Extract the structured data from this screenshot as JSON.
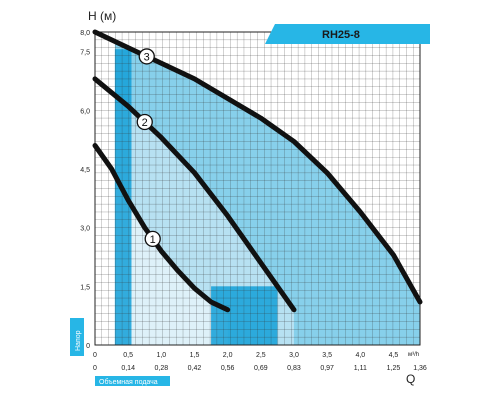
{
  "chart_data": {
    "type": "line",
    "model_label": "RH25-8",
    "ylabel": "H (м)",
    "ylabel_side": "Напор",
    "xlabel": "Q",
    "xunit": "м³/h",
    "xlabel_secondary": "Объемная подача",
    "ylim": [
      0,
      8.0
    ],
    "xlim": [
      0,
      4.9
    ],
    "y_ticks": [
      "0",
      "1,5",
      "3,0",
      "4,5",
      "6,0",
      "7,5",
      "8,0"
    ],
    "x_ticks": [
      "0",
      "0,5",
      "1,0",
      "1,5",
      "2,0",
      "2,5",
      "3,0",
      "3,5",
      "4,0",
      "4,5"
    ],
    "x_ticks_secondary": [
      "0",
      "0,14",
      "0,28",
      "0,42",
      "0,56",
      "0,69",
      "0,83",
      "0,97",
      "1,11",
      "1,25",
      "1,36"
    ],
    "grid": true,
    "series": [
      {
        "name": "1",
        "x": [
          0,
          0.25,
          0.5,
          0.75,
          1.0,
          1.25,
          1.5,
          1.75,
          2.0
        ],
        "y": [
          5.1,
          4.5,
          3.7,
          3.0,
          2.4,
          1.9,
          1.45,
          1.1,
          0.9
        ]
      },
      {
        "name": "2",
        "x": [
          0,
          0.5,
          1.0,
          1.5,
          2.0,
          2.5,
          3.0
        ],
        "y": [
          6.8,
          6.1,
          5.3,
          4.4,
          3.3,
          2.1,
          0.9
        ]
      },
      {
        "name": "3",
        "x": [
          0,
          0.5,
          1.0,
          1.5,
          2.0,
          2.5,
          3.0,
          3.5,
          4.0,
          4.5,
          4.9
        ],
        "y": [
          8.0,
          7.6,
          7.2,
          6.8,
          6.3,
          5.8,
          5.2,
          4.4,
          3.4,
          2.3,
          1.1
        ]
      }
    ],
    "colors": {
      "band_light": "#bfe4f3",
      "band_mid": "#5fc0e4",
      "band_dark": "#14a0d8",
      "curve": "#111111",
      "accent": "#27b6e6"
    }
  }
}
